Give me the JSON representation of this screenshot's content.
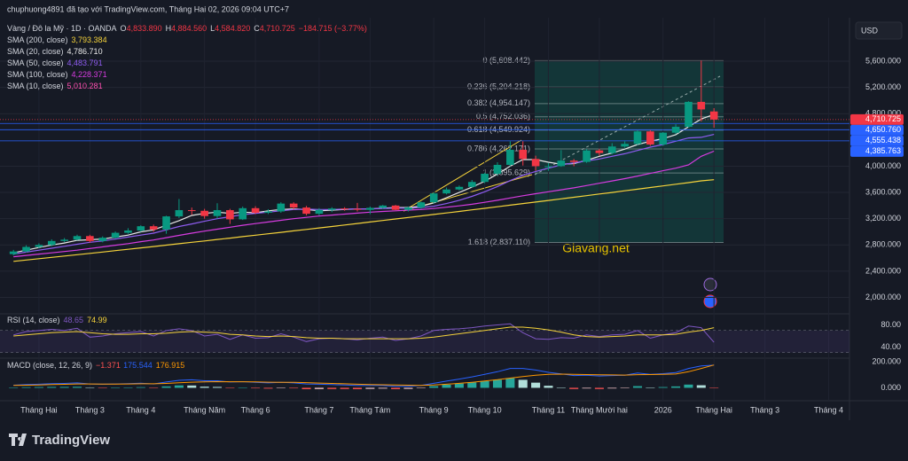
{
  "header": {
    "title": "chuphuong4891 đã tạo với TradingView.com, Tháng Hai 02, 2026 09:04 UTC+7"
  },
  "footer": {
    "brand": "TradingView"
  },
  "chart_data": {
    "type": "candlestick",
    "symbol": "Vàng / Đô la Mỹ · 1D · OANDA",
    "ohlc": [
      {
        "key": "O",
        "value": 4833.89,
        "label": "4,833.890"
      },
      {
        "key": "H",
        "value": 4884.56,
        "label": "4,884.560"
      },
      {
        "key": "L",
        "value": 4584.82,
        "label": "4,584.820"
      },
      {
        "key": "C",
        "value": 4710.725,
        "label": "4,710.725"
      }
    ],
    "change": "−184.715 (−3.77%)",
    "currency": "USD",
    "watermark": "Giavang.net",
    "up_color": "#089981",
    "down_color": "#f23645",
    "categories": [
      null,
      null,
      "Tháng Hai",
      null,
      null,
      null,
      "Tháng 3",
      null,
      null,
      null,
      "Tháng 4",
      null,
      null,
      null,
      null,
      "Tháng Năm",
      null,
      null,
      null,
      "Tháng 6",
      null,
      null,
      null,
      null,
      "Tháng 7",
      null,
      null,
      null,
      "Tháng Tám",
      null,
      null,
      null,
      null,
      "Tháng 9",
      null,
      null,
      null,
      "Tháng 10",
      null,
      null,
      null,
      null,
      "Tháng 11",
      null,
      null,
      null,
      "Tháng Mười hai",
      null,
      null,
      null,
      null,
      "2026",
      null,
      null,
      null,
      "Tháng Hai",
      null,
      null,
      null,
      "Tháng 3",
      null,
      null,
      null,
      null,
      "Tháng 4",
      null
    ],
    "open": [
      2660,
      2700,
      2770,
      2800,
      2860,
      2880,
      2935,
      2860,
      2910,
      2985,
      3020,
      3085,
      3035,
      3235,
      3330,
      3320,
      3240,
      3330,
      3190,
      3360,
      3290,
      3310,
      3430,
      3370,
      3275,
      3335,
      3355,
      3350,
      3335,
      3365,
      3400,
      3335,
      3370,
      3450,
      3585,
      3645,
      3685,
      3760,
      3885,
      4020,
      4250,
      4110,
      4000,
      4000,
      4085,
      4065,
      4240,
      4200,
      4300,
      4340,
      4530,
      4330,
      4510,
      4600,
      4980,
      4833.89,
      null,
      null,
      null,
      null,
      null,
      null,
      null,
      null,
      null,
      null
    ],
    "high": [
      2725,
      2795,
      2825,
      2885,
      2905,
      2955,
      2955,
      2930,
      3005,
      3055,
      3100,
      3110,
      3245,
      3500,
      3370,
      3350,
      3435,
      3350,
      3385,
      3390,
      3345,
      3450,
      3450,
      3395,
      3360,
      3375,
      3375,
      3440,
      3385,
      3410,
      3410,
      3385,
      3460,
      3600,
      3675,
      3705,
      3790,
      3900,
      4060,
      4380,
      4380,
      4160,
      4050,
      4245,
      4110,
      4260,
      4265,
      4350,
      4380,
      4550,
      4550,
      4520,
      4640,
      4990,
      5608.442,
      4884.56,
      null,
      null,
      null,
      null,
      null,
      null,
      null,
      null,
      null,
      null
    ],
    "low": [
      2640,
      2685,
      2750,
      2780,
      2840,
      2870,
      2835,
      2840,
      2895,
      2970,
      3000,
      3000,
      2970,
      3210,
      3260,
      3200,
      3200,
      3120,
      3180,
      3270,
      3270,
      3290,
      3340,
      3250,
      3250,
      3300,
      3320,
      3310,
      3270,
      3350,
      3330,
      3310,
      3350,
      3430,
      3570,
      3630,
      3670,
      3740,
      3860,
      4000,
      4010,
      3930,
      3930,
      3990,
      4000,
      4050,
      4160,
      4180,
      4280,
      4320,
      4310,
      4310,
      4490,
      4590,
      4680,
      4584.82,
      null,
      null,
      null,
      null,
      null,
      null,
      null,
      null,
      null,
      null
    ],
    "close": [
      2700,
      2770,
      2800,
      2860,
      2880,
      2935,
      2860,
      2910,
      2985,
      3020,
      3085,
      3035,
      3235,
      3330,
      3320,
      3240,
      3330,
      3190,
      3360,
      3290,
      3310,
      3430,
      3370,
      3275,
      3335,
      3355,
      3350,
      3335,
      3365,
      3400,
      3335,
      3370,
      3450,
      3585,
      3645,
      3685,
      3760,
      3885,
      4020,
      4250,
      4110,
      4000,
      4000,
      4085,
      4065,
      4240,
      4200,
      4300,
      4340,
      4530,
      4330,
      4510,
      4600,
      4980,
      4865,
      4710.725,
      null,
      null,
      null,
      null,
      null,
      null,
      null,
      null,
      null,
      null
    ],
    "sma": [
      {
        "name": "SMA (200, close)",
        "value_label": "3,793.384",
        "color": "#f5d33b",
        "values": [
          2550,
          2570,
          2590,
          2610,
          2631,
          2651,
          2672,
          2692,
          2713,
          2734,
          2755,
          2776,
          2797,
          2818,
          2840,
          2861,
          2883,
          2904,
          2926,
          2948,
          2970,
          2992,
          3014,
          3036,
          3059,
          3081,
          3104,
          3126,
          3149,
          3172,
          3195,
          3218,
          3241,
          3264,
          3288,
          3311,
          3335,
          3358,
          3382,
          3406,
          3430,
          3454,
          3478,
          3502,
          3527,
          3551,
          3576,
          3600,
          3625,
          3650,
          3675,
          3700,
          3725,
          3750,
          3776,
          3793.384,
          null,
          null,
          null,
          null,
          null,
          null,
          null,
          null,
          null,
          null
        ]
      },
      {
        "name": "SMA (20, close)",
        "value_label": "4,786.710",
        "color": "#e8e8e8",
        "values": [
          2680,
          2720,
          2760,
          2800,
          2830,
          2870,
          2880,
          2890,
          2920,
          2950,
          3000,
          3030,
          3100,
          3170,
          3250,
          3280,
          3300,
          3280,
          3300,
          3290,
          3320,
          3340,
          3350,
          3340,
          3320,
          3330,
          3340,
          3350,
          3350,
          3360,
          3370,
          3370,
          3390,
          3440,
          3520,
          3600,
          3680,
          3770,
          3880,
          4000,
          4100,
          4100,
          4060,
          4030,
          4040,
          4090,
          4150,
          4200,
          4260,
          4330,
          4380,
          4420,
          4480,
          4600,
          4720,
          4786.71,
          null,
          null,
          null,
          null,
          null,
          null,
          null,
          null,
          null,
          null
        ]
      },
      {
        "name": "SMA (50, close)",
        "value_label": "4,483.791",
        "color": "#8e5cf0",
        "values": [
          2660,
          2690,
          2720,
          2750,
          2780,
          2810,
          2840,
          2860,
          2890,
          2920,
          2950,
          2980,
          3030,
          3080,
          3120,
          3160,
          3200,
          3230,
          3260,
          3280,
          3300,
          3320,
          3340,
          3345,
          3340,
          3340,
          3345,
          3350,
          3350,
          3355,
          3360,
          3360,
          3370,
          3390,
          3430,
          3480,
          3540,
          3610,
          3690,
          3780,
          3860,
          3920,
          3970,
          4020,
          4050,
          4080,
          4110,
          4150,
          4190,
          4240,
          4290,
          4330,
          4380,
          4430,
          4440,
          4483.791,
          null,
          null,
          null,
          null,
          null,
          null,
          null,
          null,
          null,
          null
        ]
      },
      {
        "name": "SMA (100, close)",
        "value_label": "4,228.371",
        "color": "#d63ce0",
        "values": [
          2620,
          2640,
          2660,
          2680,
          2700,
          2720,
          2745,
          2770,
          2795,
          2820,
          2850,
          2875,
          2910,
          2945,
          2980,
          3010,
          3040,
          3070,
          3100,
          3125,
          3150,
          3175,
          3200,
          3220,
          3240,
          3255,
          3270,
          3285,
          3300,
          3310,
          3320,
          3330,
          3340,
          3355,
          3375,
          3395,
          3420,
          3450,
          3480,
          3515,
          3550,
          3580,
          3610,
          3640,
          3670,
          3705,
          3740,
          3775,
          3810,
          3850,
          3890,
          3930,
          3970,
          4020,
          4150,
          4228.371,
          null,
          null,
          null,
          null,
          null,
          null,
          null,
          null,
          null,
          null
        ]
      },
      {
        "name": "SMA (10, close)",
        "value_label": "5,010.281",
        "color": "#ff4fb0"
      }
    ],
    "ylim": [
      1750,
      6100
    ],
    "yticks": [
      {
        "value": 2000,
        "label": "2,000.000"
      },
      {
        "value": 2400,
        "label": "2,400.000"
      },
      {
        "value": 2800,
        "label": "2,800.000"
      },
      {
        "value": 3200,
        "label": "3,200.000"
      },
      {
        "value": 3600,
        "label": "3,600.000"
      },
      {
        "value": 4000,
        "label": "4,000.000"
      },
      {
        "value": 4800,
        "label": "4,800.000"
      },
      {
        "value": 5200,
        "label": "5,200.000"
      },
      {
        "value": 5600,
        "label": "5,600.000"
      }
    ],
    "grid": true,
    "fib_levels": [
      {
        "value": 5608.442,
        "label": "0 (5,608.442)"
      },
      {
        "value": 5204.218,
        "label": "0.236 (5,204.218)"
      },
      {
        "value": 4954.147,
        "label": "0.382 (4,954.147)"
      },
      {
        "value": 4752.036,
        "label": "0.5 (4,752.036)"
      },
      {
        "value": 4549.924,
        "label": "0.618 (4,549.924)"
      },
      {
        "value": 4262.171,
        "label": "0.786 (4,262.171)"
      },
      {
        "value": 3895.629,
        "label": "1 (3,895.629)"
      },
      {
        "value": 2837.11,
        "label": "1.618 (2,837.110)"
      }
    ],
    "price_lines": [
      {
        "value": 4710.725,
        "label": "4,710.725",
        "color": "#f23645"
      },
      {
        "value": 4650.76,
        "label": "4,650.760",
        "color": "#2962ff"
      },
      {
        "value": 4555.438,
        "label": "4,555.438",
        "color": "#2962ff"
      },
      {
        "value": 4385.763,
        "label": "4,385.763",
        "color": "#2962ff"
      }
    ],
    "rsi": {
      "name": "RSI (14, close)",
      "value_label": "48.65",
      "ma_label": "74.99",
      "color": "#7e57c2",
      "ma_color": "#f5d33b",
      "ylim": [
        20,
        100
      ],
      "band": [
        30,
        70
      ],
      "yticks": [
        {
          "value": 40,
          "label": "40.00"
        },
        {
          "value": 80,
          "label": "80.00"
        }
      ],
      "values": [
        62,
        68,
        70,
        72,
        70,
        74,
        58,
        60,
        64,
        66,
        68,
        60,
        70,
        73,
        70,
        60,
        63,
        54,
        62,
        56,
        57,
        64,
        58,
        50,
        55,
        56,
        55,
        53,
        56,
        58,
        52,
        55,
        60,
        70,
        72,
        73,
        75,
        78,
        80,
        82,
        66,
        55,
        54,
        57,
        56,
        62,
        59,
        62,
        63,
        70,
        56,
        62,
        66,
        78,
        75,
        48.65,
        null,
        null,
        null,
        null,
        null,
        null,
        null,
        null,
        null,
        null
      ],
      "ma": [
        60,
        62,
        64,
        66,
        67,
        68,
        66,
        64,
        63,
        63,
        64,
        64,
        65,
        67,
        68,
        67,
        66,
        63,
        62,
        60,
        59,
        60,
        59,
        57,
        56,
        56,
        55,
        55,
        55,
        55,
        55,
        55,
        56,
        58,
        61,
        64,
        67,
        70,
        73,
        76,
        76,
        74,
        71,
        67,
        62,
        59,
        58,
        59,
        60,
        62,
        62,
        62,
        63,
        67,
        70,
        74.99,
        null,
        null,
        null,
        null,
        null,
        null,
        null,
        null,
        null,
        null
      ]
    },
    "macd": {
      "name": "MACD (close, 12, 26, 9)",
      "hist_label": "−1.371",
      "macd_label": "175.544",
      "signal_label": "176.915",
      "macd_color": "#2962ff",
      "signal_color": "#ff9800",
      "ylim": [
        -100,
        230
      ],
      "yticks": [
        {
          "value": 0,
          "label": "0.000"
        },
        {
          "value": 200,
          "label": "200.000"
        }
      ],
      "macd": [
        20,
        25,
        28,
        32,
        34,
        38,
        30,
        28,
        30,
        32,
        36,
        30,
        45,
        58,
        62,
        55,
        55,
        45,
        48,
        42,
        38,
        42,
        38,
        30,
        28,
        25,
        22,
        18,
        18,
        18,
        12,
        12,
        18,
        35,
        52,
        68,
        85,
        105,
        125,
        150,
        150,
        138,
        120,
        108,
        95,
        98,
        92,
        95,
        98,
        115,
        105,
        110,
        118,
        150,
        170,
        175.544,
        null,
        null,
        null,
        null,
        null,
        null,
        null,
        null,
        null,
        null
      ],
      "signal": [
        18,
        20,
        22,
        25,
        27,
        30,
        30,
        29,
        29,
        30,
        31,
        31,
        34,
        39,
        44,
        46,
        48,
        47,
        47,
        46,
        44,
        43,
        42,
        40,
        37,
        34,
        31,
        28,
        26,
        24,
        22,
        20,
        19,
        22,
        28,
        35,
        43,
        53,
        63,
        75,
        88,
        98,
        104,
        106,
        104,
        103,
        101,
        100,
        99,
        102,
        103,
        104,
        107,
        125,
        150,
        176.915,
        null,
        null,
        null,
        null,
        null,
        null,
        null,
        null,
        null,
        null
      ],
      "histogram": [
        2,
        5,
        6,
        7,
        7,
        8,
        0,
        -1,
        1,
        2,
        5,
        -1,
        11,
        19,
        18,
        9,
        7,
        -2,
        1,
        -4,
        -6,
        -1,
        -4,
        -10,
        -9,
        -9,
        -9,
        -10,
        -8,
        -6,
        -10,
        -8,
        -1,
        13,
        24,
        33,
        42,
        52,
        62,
        75,
        62,
        40,
        16,
        2,
        -9,
        -5,
        -9,
        -5,
        -1,
        13,
        2,
        6,
        11,
        25,
        20,
        -1.371,
        null,
        null,
        null,
        null,
        null,
        null,
        null,
        null,
        null,
        null
      ]
    }
  }
}
